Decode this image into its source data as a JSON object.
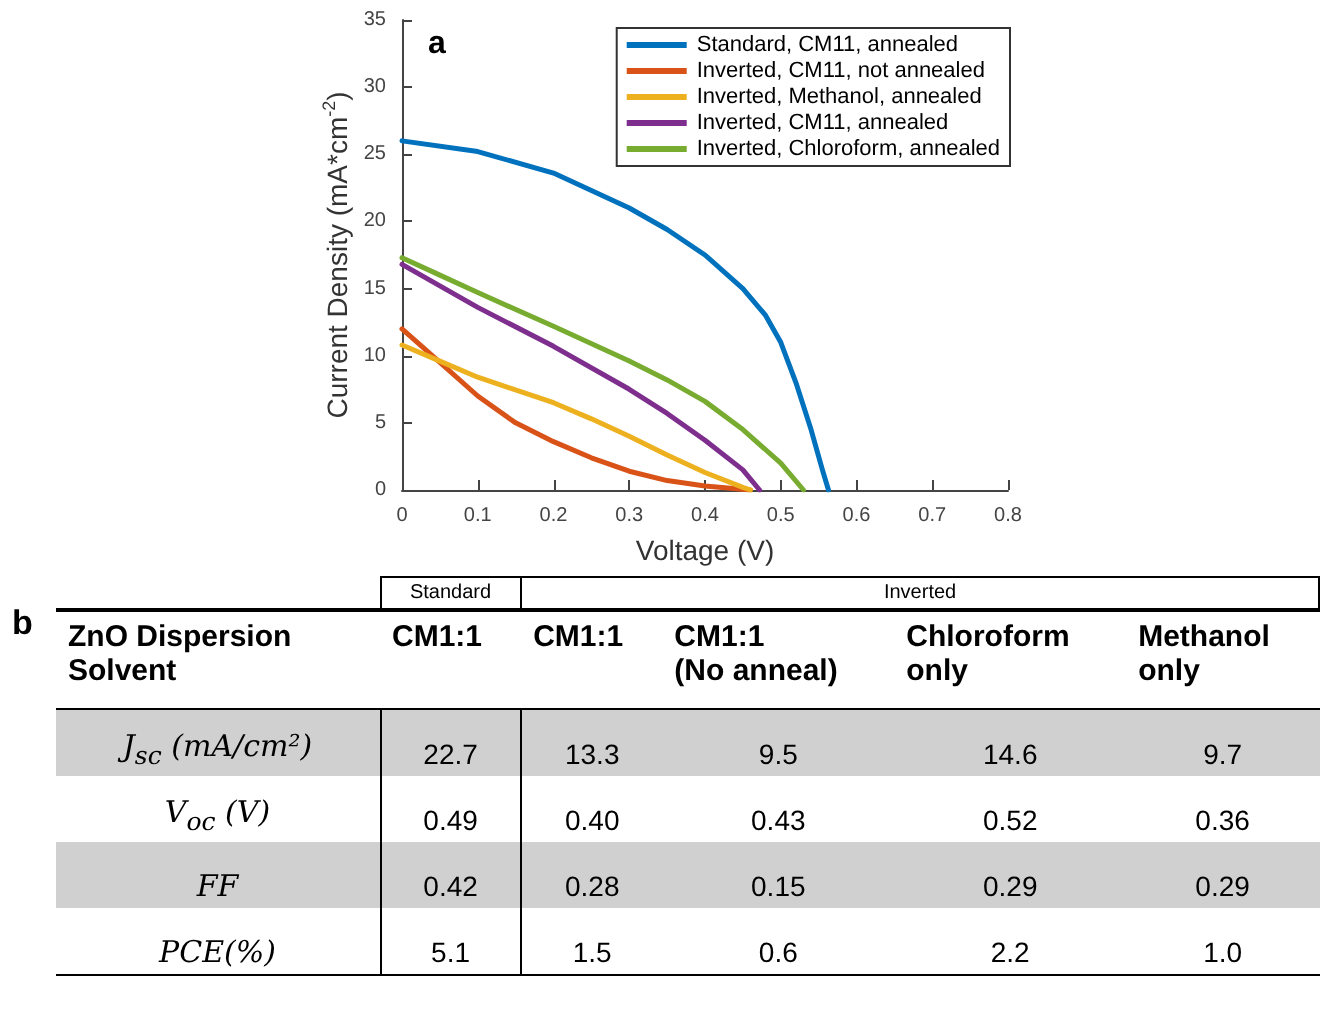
{
  "chart_data": [
    {
      "type": "line",
      "xlabel": "Voltage (V)",
      "ylabel": "Current Density (mA*cm$^{-2}$)",
      "annotations": [
        "a"
      ],
      "xlim": [
        0,
        0.8
      ],
      "xticks": [
        0,
        0.1,
        0.2,
        0.3,
        0.4,
        0.5,
        0.6,
        0.7,
        0.8
      ],
      "ylim": [
        0,
        35
      ],
      "yticks": [
        0,
        5,
        10,
        15,
        20,
        25,
        30,
        35
      ],
      "grid": false,
      "legend": "top right",
      "marker": "none",
      "line_style": "solid",
      "series": [
        {
          "name": "Standard, CM11, annealed",
          "color": "#0072bd",
          "x": [
            0,
            0.1,
            0.2,
            0.3,
            0.35,
            0.4,
            0.45,
            0.48,
            0.5,
            0.52,
            0.54,
            0.555,
            0.563
          ],
          "values": [
            26,
            25.2,
            23.6,
            21,
            19.4,
            17.5,
            15,
            13,
            11,
            8,
            4.5,
            1.5,
            0
          ]
        },
        {
          "name": "Inverted, CM11, not annealed",
          "color": "#d95319",
          "x": [
            0,
            0.05,
            0.1,
            0.15,
            0.2,
            0.25,
            0.3,
            0.35,
            0.4,
            0.46
          ],
          "values": [
            12,
            9.5,
            7,
            5,
            3.6,
            2.4,
            1.4,
            0.7,
            0.3,
            0
          ]
        },
        {
          "name": "Inverted, Methanol, annealed",
          "color": "#edb120",
          "x": [
            0,
            0.05,
            0.1,
            0.2,
            0.25,
            0.3,
            0.35,
            0.4,
            0.45,
            0.46
          ],
          "values": [
            10.8,
            9.6,
            8.4,
            6.5,
            5.3,
            4,
            2.6,
            1.3,
            0.2,
            0
          ]
        },
        {
          "name": "Inverted, CM11, annealed",
          "color": "#7e2f8e",
          "x": [
            0,
            0.1,
            0.2,
            0.3,
            0.35,
            0.4,
            0.45,
            0.472
          ],
          "values": [
            16.8,
            13.6,
            10.7,
            7.5,
            5.7,
            3.7,
            1.5,
            0
          ]
        },
        {
          "name": "Inverted, Chloroform, annealed",
          "color": "#77ac30",
          "x": [
            0,
            0.05,
            0.1,
            0.2,
            0.3,
            0.35,
            0.4,
            0.45,
            0.5,
            0.53
          ],
          "values": [
            17.3,
            16,
            14.7,
            12.2,
            9.6,
            8.2,
            6.6,
            4.5,
            2,
            0
          ]
        }
      ]
    },
    {
      "type": "other",
      "title": "b",
      "annotations": [
        "ZnO Dispersion Solvent",
        "Standard",
        "Inverted"
      ],
      "categories": [
        "CM1:1",
        "CM1:1",
        "CM1:1\n(No anneal)",
        "Chloroform\nonly",
        "Methanol\nonly"
      ],
      "y_categories": [
        "J$_{sc}$ (mA/cm²)",
        "V$_{oc}$ (V)",
        "FF",
        "PCE(%)"
      ],
      "cell_labels": [
        [
          "22.7",
          "13.3",
          "9.5",
          "14.6",
          "9.7"
        ],
        [
          "0.49",
          "0.40",
          "0.43",
          "0.52",
          "0.36"
        ],
        [
          "0.42",
          "0.28",
          "0.15",
          "0.29",
          "0.29"
        ],
        [
          "5.1",
          "1.5",
          "0.6",
          "2.2",
          "1.0"
        ]
      ]
    }
  ]
}
